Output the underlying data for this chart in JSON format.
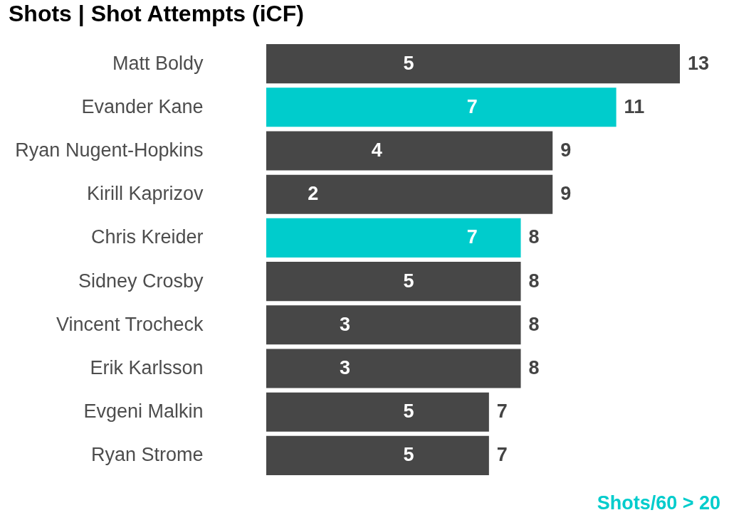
{
  "chart_data": {
    "type": "bar",
    "orientation": "horizontal",
    "title": "Shots | Shot Attempts (iCF)",
    "categories": [
      "Matt Boldy",
      "Evander Kane",
      "Ryan Nugent-Hopkins",
      "Kirill Kaprizov",
      "Chris Kreider",
      "Sidney Crosby",
      "Vincent Trocheck",
      "Erik Karlsson",
      "Evgeni Malkin",
      "Ryan Strome"
    ],
    "series": [
      {
        "color": "#474747",
        "values": [
          13,
          null,
          9,
          9,
          null,
          8,
          8,
          8,
          7,
          7
        ]
      },
      {
        "name": "Shots/60 > 20",
        "color": "#00cccc",
        "values": [
          null,
          11,
          null,
          null,
          8,
          null,
          null,
          null,
          null,
          null
        ]
      }
    ],
    "data_labels": true,
    "annotations": [
      {
        "text": "5",
        "x": 5,
        "y": "Matt Boldy"
      },
      {
        "text": "7",
        "x": 7,
        "y": "Evander Kane"
      },
      {
        "text": "4",
        "x": 4,
        "y": "Ryan Nugent-Hopkins"
      },
      {
        "text": "2",
        "x": 2,
        "y": "Kirill Kaprizov"
      },
      {
        "text": "7",
        "x": 7,
        "y": "Chris Kreider"
      },
      {
        "text": "5",
        "x": 5,
        "y": "Sidney Crosby"
      },
      {
        "text": "3",
        "x": 3,
        "y": "Vincent Trocheck"
      },
      {
        "text": "3",
        "x": 3,
        "y": "Erik Karlsson"
      },
      {
        "text": "5",
        "x": 5,
        "y": "Evgeni Malkin"
      },
      {
        "text": "5",
        "x": 5,
        "y": "Ryan Strome"
      }
    ],
    "legend": "bottom right",
    "tick_labels": "y"
  }
}
